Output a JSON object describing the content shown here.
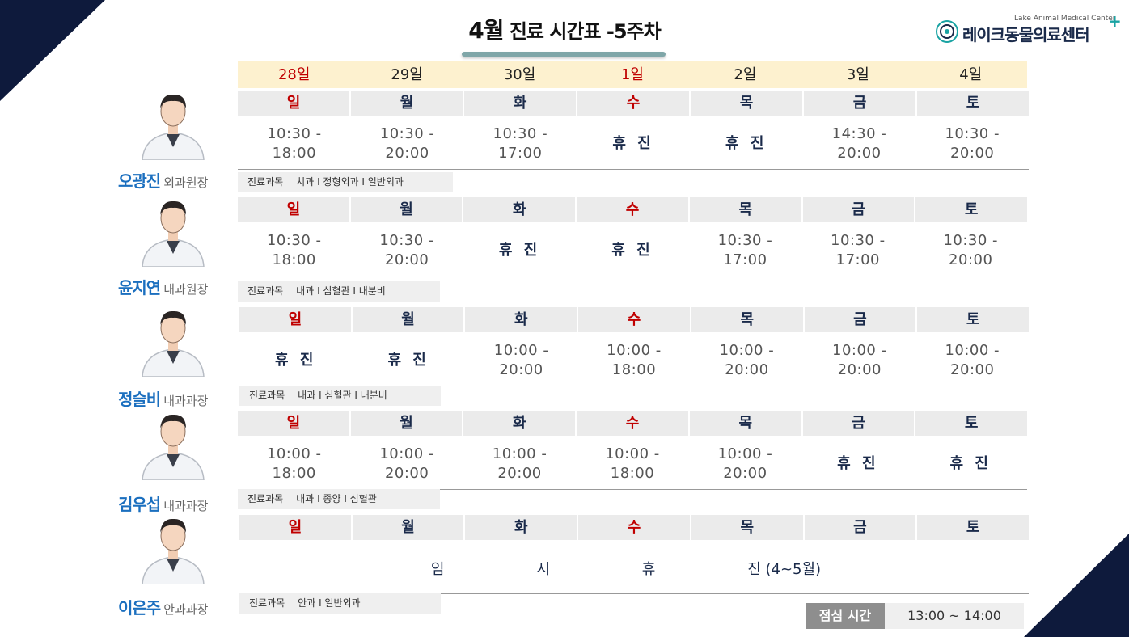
{
  "title": {
    "month": "4월",
    "rest": " 진료 시간표 -5주차"
  },
  "logo": {
    "sub": "Lake Animal Medical Center",
    "main": "레이크동물의료센터",
    "plus": "+"
  },
  "dates": [
    {
      "label": "28일",
      "red": true
    },
    {
      "label": "29일",
      "red": false
    },
    {
      "label": "30일",
      "red": false
    },
    {
      "label": "1일",
      "red": true
    },
    {
      "label": "2일",
      "red": false
    },
    {
      "label": "3일",
      "red": false
    },
    {
      "label": "4일",
      "red": false
    }
  ],
  "weekdays": [
    "일",
    "월",
    "화",
    "수",
    "목",
    "금",
    "토"
  ],
  "subject_label": "진료과목",
  "off_label": "휴 진",
  "doctors": [
    {
      "name": "오광진",
      "role": "외과원장",
      "subjects": "치과 I 정형외과 I 일반외과",
      "schedule": [
        {
          "start": "10:30 -",
          "end": "18:00"
        },
        {
          "start": "10:30 -",
          "end": "20:00"
        },
        {
          "start": "10:30 -",
          "end": "17:00"
        },
        {
          "off": true
        },
        {
          "off": true
        },
        {
          "start": "14:30 -",
          "end": "20:00"
        },
        {
          "start": "10:30 -",
          "end": "20:00"
        }
      ]
    },
    {
      "name": "윤지연",
      "role": "내과원장",
      "subjects": "내과 I 심혈관 I 내분비",
      "schedule": [
        {
          "start": "10:30 -",
          "end": "18:00"
        },
        {
          "start": "10:30 -",
          "end": "20:00"
        },
        {
          "off": true
        },
        {
          "off": true
        },
        {
          "start": "10:30 -",
          "end": "17:00"
        },
        {
          "start": "10:30 -",
          "end": "17:00"
        },
        {
          "start": "10:30 -",
          "end": "20:00"
        }
      ]
    },
    {
      "name": "정슬비",
      "role": "내과과장",
      "subjects": "내과 I 심혈관 I 내분비",
      "schedule": [
        {
          "off": true
        },
        {
          "off": true
        },
        {
          "start": "10:00 -",
          "end": "20:00"
        },
        {
          "start": "10:00 -",
          "end": "18:00"
        },
        {
          "start": "10:00 -",
          "end": "20:00"
        },
        {
          "start": "10:00 -",
          "end": "20:00"
        },
        {
          "start": "10:00 -",
          "end": "20:00"
        }
      ]
    },
    {
      "name": "김우섭",
      "role": "내과과장",
      "subjects": "내과 I 종양 I 심혈관",
      "schedule": [
        {
          "start": "10:00 -",
          "end": "18:00"
        },
        {
          "start": "10:00 -",
          "end": "20:00"
        },
        {
          "start": "10:00 -",
          "end": "20:00"
        },
        {
          "start": "10:00 -",
          "end": "18:00"
        },
        {
          "start": "10:00 -",
          "end": "20:00"
        },
        {
          "off": true
        },
        {
          "off": true
        }
      ]
    },
    {
      "name": "이은주",
      "role": "안과과장",
      "subjects": "안과 I 일반외과",
      "notice": [
        "임",
        "시",
        "휴",
        "진 (4~5월)"
      ]
    }
  ],
  "lunch": {
    "label": "점심 시간",
    "value": "13:00 ~ 14:00"
  },
  "colors": {
    "navy": "#0e1a3c",
    "red": "#c00000",
    "name_blue": "#1b6fbf",
    "date_bg": "#fdf1cf"
  }
}
